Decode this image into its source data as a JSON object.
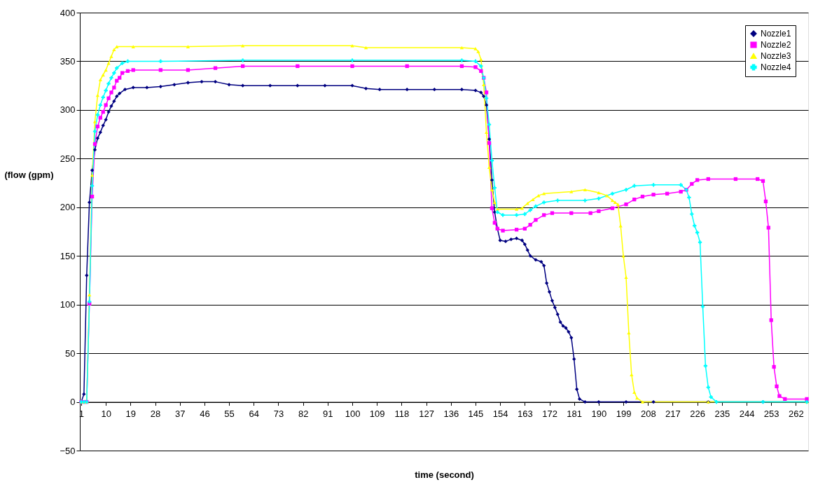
{
  "chart_data": {
    "type": "line",
    "xlabel": "time (second)",
    "ylabel": "(flow (gpm)",
    "xlim": [
      0.5,
      266.5
    ],
    "xticks": [
      1,
      10,
      19,
      28,
      37,
      46,
      55,
      64,
      73,
      82,
      91,
      100,
      109,
      118,
      127,
      136,
      145,
      154,
      163,
      172,
      181,
      190,
      199,
      208,
      217,
      226,
      235,
      244,
      253,
      262
    ],
    "ylim": [
      -50,
      400
    ],
    "yticks": [
      -50,
      0,
      50,
      100,
      150,
      200,
      250,
      300,
      350,
      400
    ],
    "grid": "y",
    "legend": "top right",
    "series": [
      {
        "name": "Nozzle1",
        "color": "#000080",
        "marker": "diamond",
        "x": [
          1,
          2,
          3,
          4,
          5,
          6,
          7,
          8,
          9,
          10,
          11,
          12,
          13,
          14,
          15,
          17,
          20,
          25,
          30,
          35,
          40,
          45,
          50,
          55,
          60,
          70,
          80,
          90,
          100,
          105,
          110,
          120,
          130,
          140,
          145,
          147,
          148,
          149,
          150,
          151,
          152,
          153,
          154,
          156,
          158,
          160,
          162,
          163,
          164,
          165,
          167,
          169,
          170,
          171,
          172,
          173,
          174,
          175,
          176,
          177,
          178,
          179,
          180,
          181,
          182,
          183,
          185,
          190,
          200,
          210,
          230,
          250,
          266
        ],
        "values": [
          0,
          8,
          130,
          205,
          238,
          259,
          271,
          277,
          284,
          290,
          298,
          304,
          309,
          314,
          317,
          321,
          323,
          323,
          324,
          326,
          328,
          329,
          329,
          326,
          325,
          325,
          325,
          325,
          325,
          322,
          321,
          321,
          321,
          321,
          320,
          318,
          314,
          305,
          270,
          228,
          195,
          178,
          166,
          165,
          167,
          168,
          166,
          162,
          156,
          150,
          146,
          144,
          140,
          122,
          113,
          104,
          97,
          90,
          82,
          78,
          76,
          72,
          66,
          44,
          13,
          3,
          0,
          0,
          0,
          0,
          0,
          0,
          0
        ]
      },
      {
        "name": "Nozzle2",
        "color": "#ff00ff",
        "marker": "square",
        "x": [
          1,
          2,
          3,
          4,
          5,
          6,
          7,
          8,
          9,
          10,
          11,
          12,
          13,
          14,
          15,
          16,
          18,
          20,
          30,
          40,
          50,
          60,
          80,
          100,
          120,
          140,
          145,
          147,
          148,
          149,
          150,
          151,
          152,
          153,
          155,
          160,
          163,
          165,
          167,
          170,
          173,
          180,
          187,
          190,
          195,
          200,
          203,
          206,
          210,
          215,
          220,
          222,
          224,
          226,
          230,
          240,
          248,
          250,
          251,
          252,
          253,
          254,
          255,
          256,
          258,
          266
        ],
        "values": [
          0,
          0,
          0,
          101,
          211,
          265,
          283,
          292,
          298,
          305,
          312,
          318,
          323,
          330,
          333,
          338,
          340,
          341,
          341,
          341,
          343,
          345,
          345,
          345,
          345,
          345,
          344,
          340,
          333,
          318,
          266,
          199,
          184,
          178,
          176,
          177,
          178,
          182,
          187,
          192,
          194,
          194,
          194,
          196,
          199,
          203,
          208,
          211,
          213,
          214,
          216,
          218,
          224,
          228,
          229,
          229,
          229,
          227,
          206,
          179,
          84,
          36,
          16,
          6,
          3,
          3
        ]
      },
      {
        "name": "Nozzle3",
        "color": "#ffff00",
        "marker": "triangle",
        "x": [
          1,
          2,
          3,
          4,
          5,
          6,
          7,
          8,
          9,
          10,
          11,
          12,
          13,
          14,
          20,
          40,
          60,
          100,
          105,
          140,
          145,
          146,
          147,
          148,
          149,
          150,
          151,
          152,
          153,
          160,
          162,
          164,
          166,
          168,
          170,
          180,
          185,
          190,
          193,
          195,
          196,
          197,
          198,
          199,
          200,
          201,
          202,
          203,
          204,
          206,
          230,
          266
        ],
        "values": [
          0,
          0,
          0,
          110,
          233,
          288,
          315,
          331,
          336,
          341,
          348,
          355,
          362,
          365,
          365,
          365,
          366,
          366,
          364,
          364,
          363,
          360,
          352,
          326,
          277,
          241,
          218,
          205,
          198,
          198,
          199,
          204,
          208,
          212,
          214,
          216,
          218,
          215,
          212,
          207,
          205,
          203,
          181,
          150,
          128,
          71,
          28,
          10,
          4,
          0,
          0,
          0
        ]
      },
      {
        "name": "Nozzle4",
        "color": "#00ffff",
        "marker": "cross",
        "x": [
          1,
          2,
          3,
          4,
          5,
          6,
          7,
          8,
          9,
          10,
          11,
          12,
          13,
          14,
          16,
          18,
          30,
          60,
          100,
          140,
          145,
          147,
          148,
          149,
          150,
          151,
          152,
          153,
          155,
          160,
          163,
          165,
          167,
          170,
          175,
          185,
          190,
          195,
          200,
          203,
          210,
          220,
          222,
          223,
          224,
          225,
          226,
          227,
          228,
          229,
          230,
          231,
          233,
          250,
          266
        ],
        "values": [
          0,
          0,
          0,
          103,
          222,
          278,
          295,
          305,
          313,
          320,
          327,
          333,
          338,
          343,
          348,
          350,
          350,
          351,
          351,
          351,
          350,
          345,
          333,
          312,
          285,
          248,
          220,
          195,
          192,
          192,
          193,
          197,
          201,
          205,
          207,
          207,
          209,
          214,
          218,
          222,
          223,
          223,
          218,
          210,
          193,
          181,
          174,
          164,
          98,
          37,
          15,
          5,
          0,
          0,
          0
        ]
      }
    ]
  }
}
